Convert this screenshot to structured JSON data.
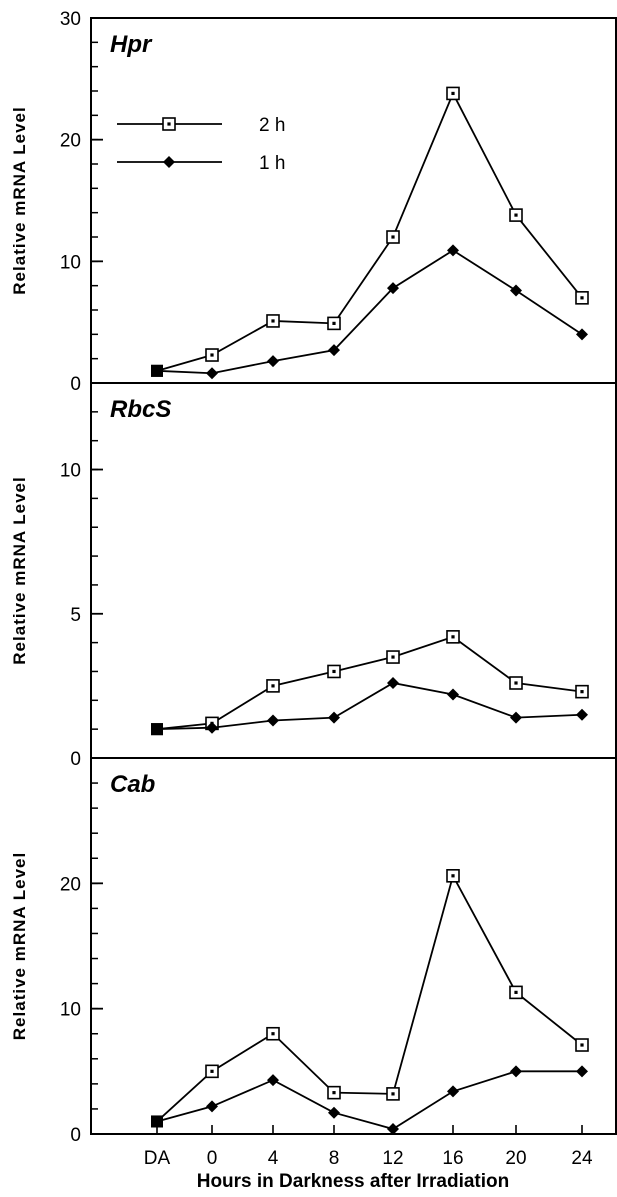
{
  "figure": {
    "xlabel": "Hours in Darkness after Irradiation",
    "categories": [
      "DA",
      "0",
      "4",
      "8",
      "12",
      "16",
      "20",
      "24"
    ],
    "legend": [
      {
        "label": "2 h",
        "marker": "open-square"
      },
      {
        "label": "1 h",
        "marker": "filled-diamond"
      }
    ]
  },
  "chart_data": [
    {
      "type": "line",
      "title": "Hpr",
      "ylabel": "Relative mRNA Level",
      "ylim": [
        0,
        30
      ],
      "yticks": [
        0,
        10,
        20,
        30
      ],
      "categories": [
        "DA",
        "0",
        "4",
        "8",
        "12",
        "16",
        "20",
        "24"
      ],
      "series": [
        {
          "name": "2 h",
          "marker": "open-square",
          "values": [
            1,
            2.3,
            5.1,
            4.9,
            12,
            23.8,
            13.8,
            7
          ]
        },
        {
          "name": "1 h",
          "marker": "filled-diamond",
          "values": [
            1,
            0.8,
            1.8,
            2.7,
            7.8,
            10.9,
            7.6,
            4
          ]
        }
      ]
    },
    {
      "type": "line",
      "title": "RbcS",
      "ylabel": "Relative mRNA Level",
      "ylim": [
        0,
        13
      ],
      "yticks": [
        0,
        5,
        10
      ],
      "categories": [
        "DA",
        "0",
        "4",
        "8",
        "12",
        "16",
        "20",
        "24"
      ],
      "series": [
        {
          "name": "2 h",
          "marker": "open-square",
          "values": [
            1,
            1.2,
            2.5,
            3,
            3.5,
            4.2,
            2.6,
            2.3
          ]
        },
        {
          "name": "1 h",
          "marker": "filled-diamond",
          "values": [
            1,
            1.05,
            1.3,
            1.4,
            2.6,
            2.2,
            1.4,
            1.5
          ]
        }
      ]
    },
    {
      "type": "line",
      "title": "Cab",
      "ylabel": "Relative mRNA Level",
      "ylim": [
        0,
        30
      ],
      "yticks": [
        0,
        10,
        20
      ],
      "categories": [
        "DA",
        "0",
        "4",
        "8",
        "12",
        "16",
        "20",
        "24"
      ],
      "series": [
        {
          "name": "2 h",
          "marker": "open-square",
          "values": [
            1,
            5,
            8,
            3.3,
            3.2,
            20.6,
            11.3,
            7.1
          ]
        },
        {
          "name": "1 h",
          "marker": "filled-diamond",
          "values": [
            1,
            2.2,
            4.3,
            1.7,
            0.4,
            3.4,
            5,
            5
          ]
        }
      ]
    }
  ]
}
